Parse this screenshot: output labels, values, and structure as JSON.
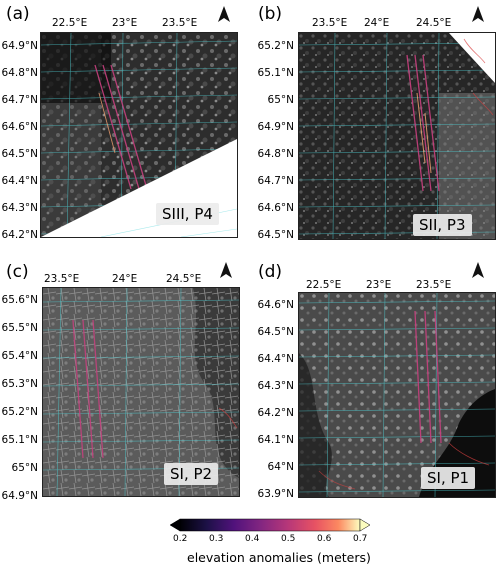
{
  "panels": [
    {
      "id": "a",
      "letter": "(a)",
      "label": "SIII, P4",
      "lon_ticks": [
        "22.5°E",
        "23°E",
        "23.5°E"
      ],
      "lat_ticks": [
        "64.9°N",
        "64.8°N",
        "64.7°N",
        "64.6°N",
        "64.5°N",
        "64.4°N",
        "64.3°N",
        "64.2°N"
      ]
    },
    {
      "id": "b",
      "letter": "(b)",
      "label": "SII, P3",
      "lon_ticks": [
        "23.5°E",
        "24°E",
        "24.5°E"
      ],
      "lat_ticks": [
        "65.2°N",
        "65.1°N",
        "65°N",
        "64.9°N",
        "64.8°N",
        "64.7°N",
        "64.6°N",
        "64.5°N"
      ]
    },
    {
      "id": "c",
      "letter": "(c)",
      "label": "SI, P2",
      "lon_ticks": [
        "23.5°E",
        "24°E",
        "24.5°E"
      ],
      "lat_ticks": [
        "65.6°N",
        "65.5°N",
        "65.4°N",
        "65.3°N",
        "65.2°N",
        "65.1°N",
        "65°N",
        "64.9°N"
      ]
    },
    {
      "id": "d",
      "letter": "(d)",
      "label": "SI, P1",
      "lon_ticks": [
        "22.5°E",
        "23°E",
        "23.5°E"
      ],
      "lat_ticks": [
        "64.6°N",
        "64.5°N",
        "64.4°N",
        "64.3°N",
        "64.2°N",
        "64.1°N",
        "64°N",
        "63.9°N"
      ]
    }
  ],
  "north_label": "N",
  "colorbar": {
    "title": "elevation anomalies (meters)",
    "ticks": [
      "0.2",
      "0.3",
      "0.4",
      "0.5",
      "0.6",
      "0.7"
    ],
    "min": 0.2,
    "max": 0.7,
    "colormap": "magma",
    "extend": "both"
  },
  "colors": {
    "grid": "#4fd3d8",
    "coast": "#d94040",
    "track": "#c8407f"
  }
}
